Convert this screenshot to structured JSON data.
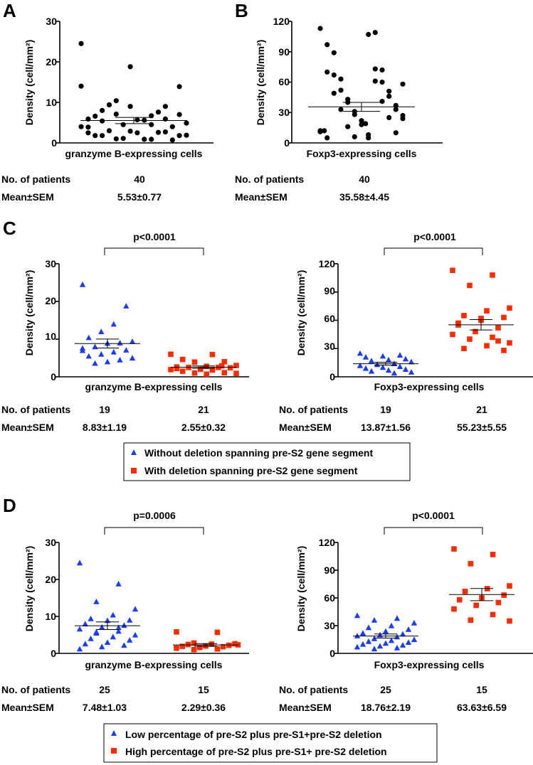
{
  "panels": {
    "A": {
      "letter": "A",
      "ylabel": "Density (cell/mm²)",
      "xlabel": "granzyme B-expressing cells",
      "yticks": [
        "0",
        "10",
        "20",
        "30"
      ],
      "stats": {
        "row1_label": "No. of patients",
        "row2_label": "Mean±SEM",
        "cols": [
          {
            "n": "40",
            "mean": "5.53±0.77"
          }
        ]
      }
    },
    "B": {
      "letter": "B",
      "ylabel": "Density (cell/mm²)",
      "xlabel": "Foxp3-expressing cells",
      "yticks": [
        "0",
        "30",
        "60",
        "90",
        "120"
      ],
      "stats": {
        "row1_label": "No. of patients",
        "row2_label": "Mean±SEM",
        "cols": [
          {
            "n": "40",
            "mean": "35.58±4.45"
          }
        ]
      }
    },
    "C": {
      "letter": "C",
      "left": {
        "ylabel": "Density (cell/mm²)",
        "xlabel": "granzyme B-expressing cells",
        "yticks": [
          "0",
          "10",
          "20",
          "30"
        ],
        "pvalue": "p<0.0001",
        "stats": {
          "row1_label": "No. of patients",
          "row2_label": "Mean±SEM",
          "cols": [
            {
              "n": "19",
              "mean": "8.83±1.19"
            },
            {
              "n": "21",
              "mean": "2.55±0.32"
            }
          ]
        }
      },
      "right": {
        "ylabel": "Density (cell/mm²)",
        "xlabel": "Foxp3-expressing cells",
        "yticks": [
          "0",
          "30",
          "60",
          "90",
          "120"
        ],
        "pvalue": "p<0.0001",
        "stats": {
          "row1_label": "No. of patients",
          "row2_label": "Mean±SEM",
          "cols": [
            {
              "n": "19",
              "mean": "13.87±1.56"
            },
            {
              "n": "21",
              "mean": "55.23±5.55"
            }
          ]
        }
      },
      "legend": [
        {
          "label": "Without deletion spanning pre-S2 gene segment",
          "marker": "triangle",
          "color": "#1a3cff"
        },
        {
          "label": "With deletion spanning pre-S2 gene segment",
          "marker": "square",
          "color": "#ff2a00"
        }
      ]
    },
    "D": {
      "letter": "D",
      "left": {
        "ylabel": "Density (cell/mm²)",
        "xlabel": "granzyme B-expressing cells",
        "yticks": [
          "0",
          "10",
          "20",
          "30"
        ],
        "pvalue": "p=0.0006",
        "stats": {
          "row1_label": "No. of patients",
          "row2_label": "Mean±SEM",
          "cols": [
            {
              "n": "25",
              "mean": "7.48±1.03"
            },
            {
              "n": "15",
              "mean": "2.29±0.36"
            }
          ]
        }
      },
      "right": {
        "ylabel": "Density (cell/mm²)",
        "xlabel": "Foxp3-expressing cells",
        "yticks": [
          "0",
          "30",
          "60",
          "90",
          "120"
        ],
        "pvalue": "p<0.0001",
        "stats": {
          "row1_label": "No. of patients",
          "row2_label": "Mean±SEM",
          "cols": [
            {
              "n": "25",
              "mean": "18.76±2.19"
            },
            {
              "n": "15",
              "mean": "63.63±6.59"
            }
          ]
        }
      },
      "legend": [
        {
          "label": "Low percentage of pre-S2 plus pre-S1+pre-S2 deletion",
          "marker": "triangle",
          "color": "#1a3cff"
        },
        {
          "label": "High percentage of pre-S2 plus pre-S1+ pre-S2 deletion",
          "marker": "square",
          "color": "#ff2a00"
        }
      ]
    }
  },
  "chart_data": [
    {
      "id": "A",
      "type": "scatter",
      "title": "",
      "xlabel": "granzyme B-expressing cells",
      "ylabel": "Density (cell/mm²)",
      "ylim": [
        0,
        30
      ],
      "series": [
        {
          "name": "granzyme B-expressing cells",
          "marker": "circle",
          "color": "#000000",
          "mean": 5.53,
          "sem": 0.77,
          "values": [
            24.5,
            18.8,
            13.9,
            10.4,
            9.0,
            8.0,
            6.7,
            5.9,
            5.7,
            4.9,
            4.5,
            4.0,
            3.0,
            2.6,
            1.8,
            0.9,
            14.0,
            9.0,
            7.0,
            7.1,
            5.9,
            5.4,
            4.5,
            3.9,
            2.5,
            1.9,
            1.1,
            0.7,
            9.4,
            7.6,
            6.6,
            5.6,
            4.0,
            2.9,
            1.8,
            1.0,
            2.7,
            1.8,
            0.9,
            2.5
          ]
        }
      ]
    },
    {
      "id": "B",
      "type": "scatter",
      "title": "",
      "xlabel": "Foxp3-expressing cells",
      "ylabel": "Density (cell/mm²)",
      "ylim": [
        0,
        120
      ],
      "series": [
        {
          "name": "Foxp3-expressing cells",
          "marker": "circle",
          "color": "#000000",
          "mean": 35.58,
          "sem": 4.45,
          "values": [
            113,
            107,
            97,
            73,
            67,
            60,
            52,
            46,
            40,
            33,
            28,
            24,
            18,
            12,
            8,
            5,
            109,
            89,
            72,
            63,
            51,
            43,
            37,
            31,
            27,
            19,
            12,
            5,
            70,
            61,
            49,
            41,
            33,
            25,
            16,
            10,
            6,
            58,
            22,
            11
          ]
        }
      ]
    },
    {
      "id": "C-left",
      "type": "scatter",
      "title": "p<0.0001",
      "xlabel": "granzyme B-expressing cells",
      "ylabel": "Density (cell/mm²)",
      "ylim": [
        0,
        30
      ],
      "categories": [
        "Without deletion spanning pre-S2 gene segment",
        "With deletion spanning pre-S2 gene segment"
      ],
      "series": [
        {
          "name": "Without deletion spanning pre-S2 gene segment",
          "marker": "triangle",
          "color": "#1a3cff",
          "mean": 8.83,
          "sem": 1.19,
          "values": [
            24.5,
            18.8,
            14.0,
            12.0,
            10.4,
            9.4,
            9.0,
            8.9,
            8.0,
            7.6,
            7.1,
            6.6,
            6.0,
            5.5,
            5.0,
            4.5,
            4.0,
            3.6,
            7.0
          ]
        },
        {
          "name": "With deletion spanning pre-S2 gene segment",
          "marker": "square",
          "color": "#ff2a00",
          "mean": 2.55,
          "sem": 0.32,
          "values": [
            6.0,
            5.9,
            4.6,
            4.0,
            3.9,
            3.0,
            2.8,
            2.6,
            2.5,
            2.5,
            2.4,
            2.0,
            1.9,
            1.8,
            1.5,
            1.1,
            1.0,
            0.9,
            0.7,
            2.2,
            2.9
          ]
        }
      ]
    },
    {
      "id": "C-right",
      "type": "scatter",
      "title": "p<0.0001",
      "xlabel": "Foxp3-expressing cells",
      "ylabel": "Density (cell/mm²)",
      "ylim": [
        0,
        120
      ],
      "categories": [
        "Without deletion spanning pre-S2 gene segment",
        "With deletion spanning pre-S2 gene segment"
      ],
      "series": [
        {
          "name": "Without deletion spanning pre-S2 gene segment",
          "marker": "triangle",
          "color": "#1a3cff",
          "mean": 13.87,
          "sem": 1.56,
          "values": [
            25,
            23,
            22,
            21,
            19,
            18,
            17,
            16,
            14,
            13,
            12,
            11,
            10,
            9,
            8,
            7,
            6,
            5,
            4
          ]
        },
        {
          "name": "With deletion spanning pre-S2 gene segment",
          "marker": "square",
          "color": "#ff2a00",
          "mean": 55.23,
          "sem": 5.55,
          "values": [
            113,
            108,
            97,
            73,
            70,
            65,
            63,
            60,
            55,
            52,
            48,
            45,
            42,
            40,
            36,
            33,
            30,
            28,
            62,
            57,
            38
          ]
        }
      ]
    },
    {
      "id": "D-left",
      "type": "scatter",
      "title": "p=0.0006",
      "xlabel": "granzyme B-expressing cells",
      "ylabel": "Density (cell/mm²)",
      "ylim": [
        0,
        30
      ],
      "categories": [
        "Low percentage of pre-S2 plus pre-S1+pre-S2 deletion",
        "High percentage of pre-S2 plus pre-S1+ pre-S2 deletion"
      ],
      "series": [
        {
          "name": "Low percentage of pre-S2 plus pre-S1+pre-S2 deletion",
          "marker": "triangle",
          "color": "#1a3cff",
          "mean": 7.48,
          "sem": 1.03,
          "values": [
            24.5,
            18.8,
            14.0,
            12.0,
            10.4,
            9.4,
            9.0,
            8.9,
            8.0,
            7.6,
            7.1,
            6.6,
            6.0,
            5.5,
            5.0,
            4.5,
            4.0,
            3.6,
            3.0,
            2.6,
            2.2,
            1.8,
            1.2,
            7.0,
            5.8
          ]
        },
        {
          "name": "High percentage of pre-S2 plus pre-S1+ pre-S2 deletion",
          "marker": "square",
          "color": "#ff2a00",
          "mean": 2.29,
          "sem": 0.36,
          "values": [
            5.8,
            5.7,
            2.8,
            2.6,
            2.5,
            2.4,
            2.2,
            2.0,
            1.9,
            1.8,
            1.6,
            1.4,
            1.2,
            1.0,
            2.3
          ]
        }
      ]
    },
    {
      "id": "D-right",
      "type": "scatter",
      "title": "p<0.0001",
      "xlabel": "Foxp3-expressing cells",
      "ylabel": "Density (cell/mm²)",
      "ylim": [
        0,
        120
      ],
      "categories": [
        "Low percentage of pre-S2 plus pre-S1+pre-S2 deletion",
        "High percentage of pre-S2 plus pre-S1+ pre-S2 deletion"
      ],
      "series": [
        {
          "name": "Low percentage of pre-S2 plus pre-S1+pre-S2 deletion",
          "marker": "triangle",
          "color": "#1a3cff",
          "mean": 18.76,
          "sem": 2.19,
          "values": [
            41,
            38,
            36,
            33,
            30,
            28,
            26,
            24,
            22,
            21,
            20,
            19,
            18,
            16,
            15,
            14,
            13,
            12,
            11,
            10,
            9,
            8,
            7,
            6,
            5
          ]
        },
        {
          "name": "High percentage of pre-S2 plus pre-S1+ pre-S2 deletion",
          "marker": "square",
          "color": "#ff2a00",
          "mean": 63.63,
          "sem": 6.59,
          "values": [
            113,
            107,
            97,
            73,
            70,
            67,
            63,
            60,
            58,
            55,
            52,
            48,
            42,
            36,
            35
          ]
        }
      ]
    }
  ]
}
